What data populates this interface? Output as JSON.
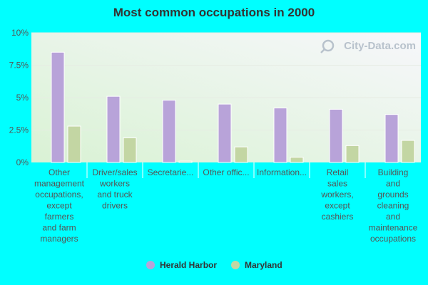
{
  "chart_data": {
    "type": "bar",
    "title": "Most common occupations in 2000",
    "categories": [
      [
        "Other",
        "management",
        "occupations,",
        "except",
        "farmers",
        "and farm",
        "managers"
      ],
      [
        "Driver/sales",
        "workers",
        "and truck",
        "drivers"
      ],
      [
        "Secretarie..."
      ],
      [
        "Other offic..."
      ],
      [
        "Information..."
      ],
      [
        "Retail",
        "sales",
        "workers,",
        "except",
        "cashiers"
      ],
      [
        "Building",
        "and",
        "grounds",
        "cleaning",
        "and",
        "maintenance",
        "occupations"
      ]
    ],
    "series": [
      {
        "name": "Herald Harbor",
        "color": "#b8a3d9",
        "values": [
          8.5,
          5.1,
          4.8,
          4.5,
          4.2,
          4.1,
          3.7
        ]
      },
      {
        "name": "Maryland",
        "color": "#c3d6a3",
        "values": [
          2.8,
          1.9,
          0.1,
          1.2,
          0.4,
          1.3,
          1.7
        ]
      }
    ],
    "ylim": [
      0,
      10
    ],
    "yticks": [
      0,
      2.5,
      5,
      7.5,
      10
    ],
    "ytick_labels": [
      "0%",
      "2.5%",
      "5%",
      "7.5%",
      "10%"
    ],
    "xlabel": "",
    "ylabel": "",
    "grid": true,
    "legend": "bottom-center",
    "watermark": "City-Data.com"
  }
}
